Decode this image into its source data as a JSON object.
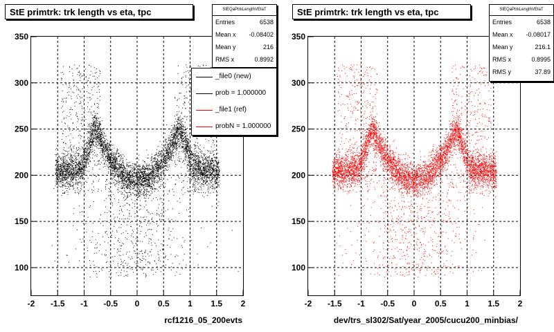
{
  "chart_data": [
    {
      "type": "scatter",
      "title": "StE primtrk: trk length vs eta, tpc",
      "stats_header": "StEQaPtrkLengthVEtaT",
      "stats": [
        {
          "label": "Entries",
          "value": "6538"
        },
        {
          "label": "Mean x",
          "value": "-0.08402"
        },
        {
          "label": "Mean y",
          "value": "216"
        },
        {
          "label": "RMS x",
          "value": "0.8992"
        }
      ],
      "legend": [
        {
          "label": "_file0 (new)",
          "color": "#000000"
        },
        {
          "label": "prob = 1.000000",
          "color": "#000000"
        },
        {
          "label": "_file1 (ref)",
          "color": "#ff0000"
        },
        {
          "label": "probN = 1.000000",
          "color": "#ff0000"
        }
      ],
      "xlabel": "rcf1216_05_200evts",
      "ylabel": "",
      "xlim": [
        -2,
        2
      ],
      "ylim": [
        70,
        350
      ],
      "x_ticks": [
        "-2",
        "-1.5",
        "-1",
        "-0.5",
        "0",
        "0.5",
        "1",
        "1.5",
        "2"
      ],
      "y_ticks": [
        "100",
        "150",
        "200",
        "250",
        "300",
        "350"
      ],
      "grid": true,
      "point_color": "#000000",
      "entries": 6538
    },
    {
      "type": "scatter",
      "title": "StE primtrk: trk length vs eta, tpc",
      "stats_header": "StEQaPtrkLengthVEtaT",
      "stats": [
        {
          "label": "Entries",
          "value": "6538"
        },
        {
          "label": "Mean x",
          "value": "-0.08017"
        },
        {
          "label": "Mean y",
          "value": "216.1"
        },
        {
          "label": "RMS x",
          "value": "0.8995"
        },
        {
          "label": "RMS y",
          "value": "37.89"
        }
      ],
      "xlabel": "dev/trs_sl302/Sat/year_2005/cucu200_minbias/",
      "ylabel": "",
      "xlim": [
        -2,
        2
      ],
      "ylim": [
        70,
        350
      ],
      "x_ticks": [
        "-2",
        "-1.5",
        "-1",
        "-0.5",
        "0",
        "0.5",
        "1",
        "1.5",
        "2"
      ],
      "y_ticks": [
        "100",
        "150",
        "200",
        "250",
        "300",
        "350"
      ],
      "grid": true,
      "point_color": "#ff0000",
      "entries": 6538
    }
  ]
}
